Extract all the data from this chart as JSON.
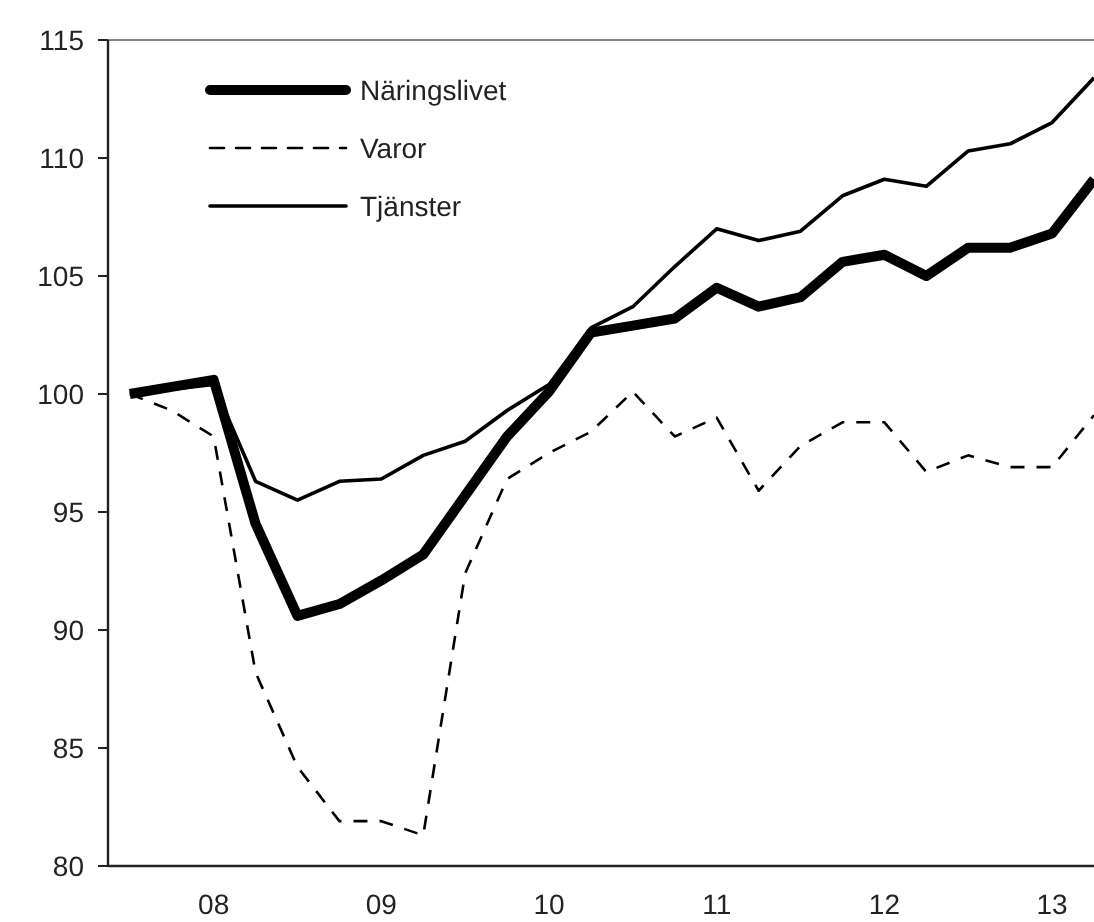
{
  "chart_data": {
    "type": "line",
    "x": [
      2007.5,
      2007.75,
      2008,
      2008.25,
      2008.5,
      2008.75,
      2009,
      2009.25,
      2009.5,
      2009.75,
      2010,
      2010.25,
      2010.5,
      2010.75,
      2011,
      2011.25,
      2011.5,
      2011.75,
      2012,
      2012.25,
      2012.5,
      2012.75,
      2013,
      2013.25
    ],
    "series": [
      {
        "name": "Näringslivet",
        "color": "#000000",
        "line_style": "solid",
        "values": [
          100,
          100.3,
          100.6,
          94.5,
          90.6,
          91.1,
          92.1,
          93.2,
          95.7,
          98.2,
          100.1,
          102.6,
          102.9,
          103.2,
          104.5,
          103.7,
          104.1,
          105.6,
          105.9,
          105.0,
          106.2,
          106.2,
          106.8,
          109.1
        ]
      },
      {
        "name": "Varor",
        "color": "#000000",
        "line_style": "dashed",
        "values": [
          100,
          99.3,
          98.2,
          88.2,
          84.2,
          81.9,
          81.9,
          81.3,
          92.4,
          96.4,
          97.5,
          98.4,
          100.1,
          98.2,
          99.0,
          95.9,
          97.8,
          98.8,
          98.8,
          96.7,
          97.4,
          96.9,
          96.9,
          99.1
        ]
      },
      {
        "name": "Tjänster",
        "color": "#000000",
        "line_style": "solid",
        "values": [
          100,
          100.2,
          100.4,
          96.3,
          95.5,
          96.3,
          96.4,
          97.4,
          98.0,
          99.3,
          100.4,
          102.8,
          103.7,
          105.4,
          107.0,
          106.5,
          106.9,
          108.4,
          109.1,
          108.8,
          110.3,
          110.6,
          111.5,
          113.4
        ]
      }
    ],
    "xlim": [
      2007.37,
      2013.25
    ],
    "xticks": [
      {
        "value": 2008,
        "label": "08"
      },
      {
        "value": 2009,
        "label": "09"
      },
      {
        "value": 2010,
        "label": "10"
      },
      {
        "value": 2011,
        "label": "11"
      },
      {
        "value": 2012,
        "label": "12"
      },
      {
        "value": 2013,
        "label": "13"
      }
    ],
    "ylim": [
      80,
      115
    ],
    "yticks": [
      80,
      85,
      90,
      95,
      100,
      105,
      110,
      115
    ],
    "grid": false,
    "legend": "top left"
  }
}
